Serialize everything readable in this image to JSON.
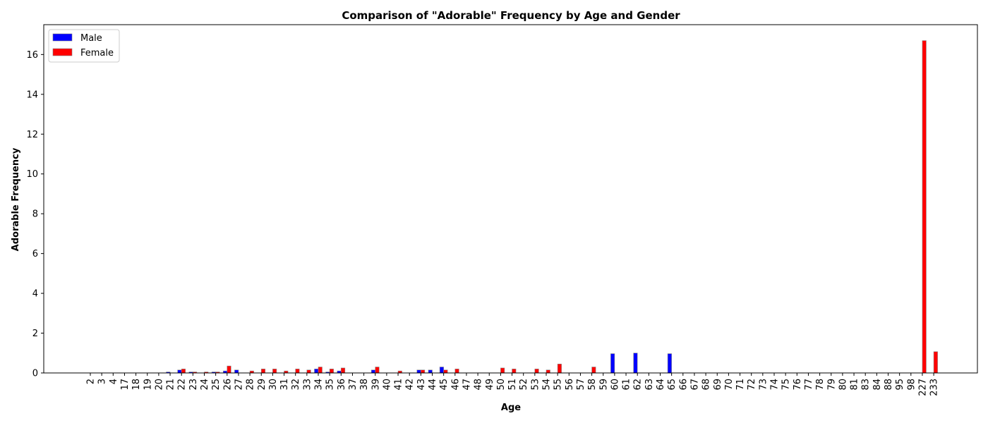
{
  "chart_data": {
    "type": "bar",
    "title": "Comparison of \"Adorable\" Frequency by Age and Gender",
    "xlabel": "Age",
    "ylabel": "Adorable Frequency",
    "ylim": [
      0,
      17.5
    ],
    "yticks": [
      0,
      2,
      4,
      6,
      8,
      10,
      12,
      14,
      16
    ],
    "grid": false,
    "legend_position": "top-left",
    "categories": [
      "2",
      "3",
      "4",
      "17",
      "18",
      "19",
      "20",
      "21",
      "22",
      "23",
      "24",
      "25",
      "26",
      "27",
      "28",
      "29",
      "30",
      "31",
      "32",
      "33",
      "34",
      "35",
      "36",
      "37",
      "38",
      "39",
      "40",
      "41",
      "42",
      "43",
      "44",
      "45",
      "46",
      "47",
      "48",
      "49",
      "50",
      "51",
      "52",
      "53",
      "54",
      "55",
      "56",
      "57",
      "58",
      "59",
      "60",
      "61",
      "62",
      "63",
      "64",
      "65",
      "66",
      "67",
      "68",
      "69",
      "70",
      "71",
      "72",
      "73",
      "74",
      "75",
      "76",
      "77",
      "78",
      "79",
      "80",
      "81",
      "83",
      "84",
      "88",
      "95",
      "98",
      "227",
      "233"
    ],
    "series": [
      {
        "name": "Male",
        "color": "#0000ff",
        "values": [
          0,
          0,
          0,
          0,
          0,
          0,
          0,
          0.05,
          0.15,
          0.05,
          0,
          0.05,
          0.1,
          0.15,
          0,
          0,
          0,
          0,
          0,
          0,
          0.2,
          0.05,
          0.1,
          0,
          0,
          0.15,
          0,
          0,
          0,
          0.15,
          0.15,
          0.3,
          0,
          0,
          0,
          0,
          0,
          0,
          0,
          0,
          0,
          0,
          0,
          0,
          0,
          0,
          0.97,
          0,
          1.0,
          0,
          0,
          0.97,
          0,
          0,
          0,
          0,
          0,
          0,
          0,
          0,
          0,
          0,
          0,
          0,
          0,
          0,
          0,
          0,
          0,
          0,
          0,
          0,
          0,
          0,
          0
        ]
      },
      {
        "name": "Female",
        "color": "#ff0000",
        "values": [
          0,
          0,
          0,
          0,
          0,
          0,
          0,
          0,
          0.2,
          0.05,
          0.05,
          0.05,
          0.35,
          0,
          0.1,
          0.2,
          0.2,
          0.1,
          0.2,
          0.15,
          0.3,
          0.2,
          0.25,
          0,
          0,
          0.3,
          0,
          0.1,
          0,
          0.15,
          0,
          0.15,
          0.2,
          0,
          0,
          0,
          0.25,
          0.2,
          0,
          0.2,
          0.15,
          0.45,
          0,
          0,
          0.3,
          0,
          0,
          0,
          0,
          0,
          0,
          0,
          0,
          0,
          0,
          0,
          0,
          0,
          0,
          0,
          0,
          0,
          0,
          0,
          0,
          0,
          0,
          0,
          0,
          0,
          0,
          0,
          0,
          16.7,
          1.07
        ]
      }
    ]
  }
}
